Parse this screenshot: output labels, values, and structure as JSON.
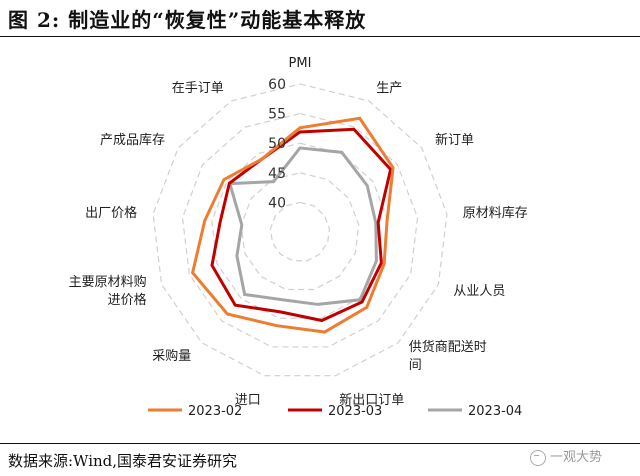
{
  "header": {
    "title": "图 2:  制造业的“恢复性”动能基本释放"
  },
  "footer": {
    "source": "数据来源:Wind,国泰君安证券研究",
    "watermark": "一观大势"
  },
  "chart_data": {
    "type": "radar",
    "title": "",
    "axes": [
      "PMI",
      "生产",
      "新订单",
      "原材料库存",
      "从业人员",
      "供货商配送时间",
      "新出口订单",
      "进口",
      "采购量",
      "主要原材料购进价格",
      "出厂价格",
      "产成品库存",
      "在手订单"
    ],
    "axis_label_lines": [
      [
        "PMI"
      ],
      [
        "生产"
      ],
      [
        "新订单"
      ],
      [
        "原材料库存"
      ],
      [
        "从业人员"
      ],
      [
        "供货商配送时",
        "间"
      ],
      [
        "新出口订单"
      ],
      [
        "进口"
      ],
      [
        "采购量"
      ],
      [
        "主要原材料购",
        "进价格"
      ],
      [
        "出厂价格"
      ],
      [
        "产成品库存"
      ],
      [
        "在手订单"
      ]
    ],
    "ticks": [
      "40",
      "45",
      "50",
      "55",
      "60"
    ],
    "rlim": [
      35,
      60
    ],
    "series": [
      {
        "name": "2023-02",
        "color": "#ED7D31",
        "values": [
          52.6,
          56.7,
          54.1,
          49.8,
          50.2,
          52.0,
          52.4,
          51.3,
          53.5,
          54.4,
          51.2,
          50.6,
          48.9
        ]
      },
      {
        "name": "2023-03",
        "color": "#C00000",
        "values": [
          51.9,
          54.6,
          53.6,
          48.3,
          49.7,
          50.8,
          50.4,
          48.9,
          51.5,
          50.9,
          48.6,
          49.5,
          48.9
        ]
      },
      {
        "name": "2023-04",
        "color": "#A5A5A5",
        "values": [
          49.2,
          50.2,
          48.8,
          47.9,
          48.8,
          50.3,
          47.6,
          46.8,
          49.1,
          46.4,
          44.9,
          49.4,
          44.6
        ]
      }
    ],
    "grid": true,
    "legend": "bottom"
  }
}
